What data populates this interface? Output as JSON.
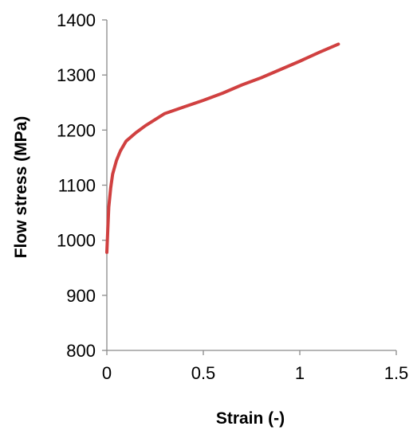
{
  "chart_data": {
    "type": "line",
    "title": "",
    "xlabel": "Strain (-)",
    "ylabel": "Flow stress (MPa)",
    "xlim": [
      0,
      1.5
    ],
    "ylim": [
      800,
      1400
    ],
    "x_ticks": [
      0,
      0.5,
      1,
      1.5
    ],
    "x_tick_labels": [
      "0",
      "0.5",
      "1",
      "1.5"
    ],
    "y_ticks": [
      800,
      900,
      1000,
      1100,
      1200,
      1300,
      1400
    ],
    "y_tick_labels": [
      "800",
      "900",
      "1000",
      "1100",
      "1200",
      "1300",
      "1400"
    ],
    "grid": false,
    "legend": "none",
    "series": [
      {
        "color": "#d04040",
        "x": [
          0,
          0.005,
          0.01,
          0.02,
          0.03,
          0.05,
          0.07,
          0.1,
          0.15,
          0.2,
          0.25,
          0.3,
          0.4,
          0.5,
          0.6,
          0.7,
          0.8,
          0.9,
          1.0,
          1.1,
          1.2
        ],
        "y": [
          978,
          1020,
          1060,
          1095,
          1120,
          1145,
          1162,
          1180,
          1195,
          1208,
          1219,
          1230,
          1242,
          1254,
          1267,
          1282,
          1295,
          1310,
          1325,
          1341,
          1356
        ]
      }
    ]
  }
}
